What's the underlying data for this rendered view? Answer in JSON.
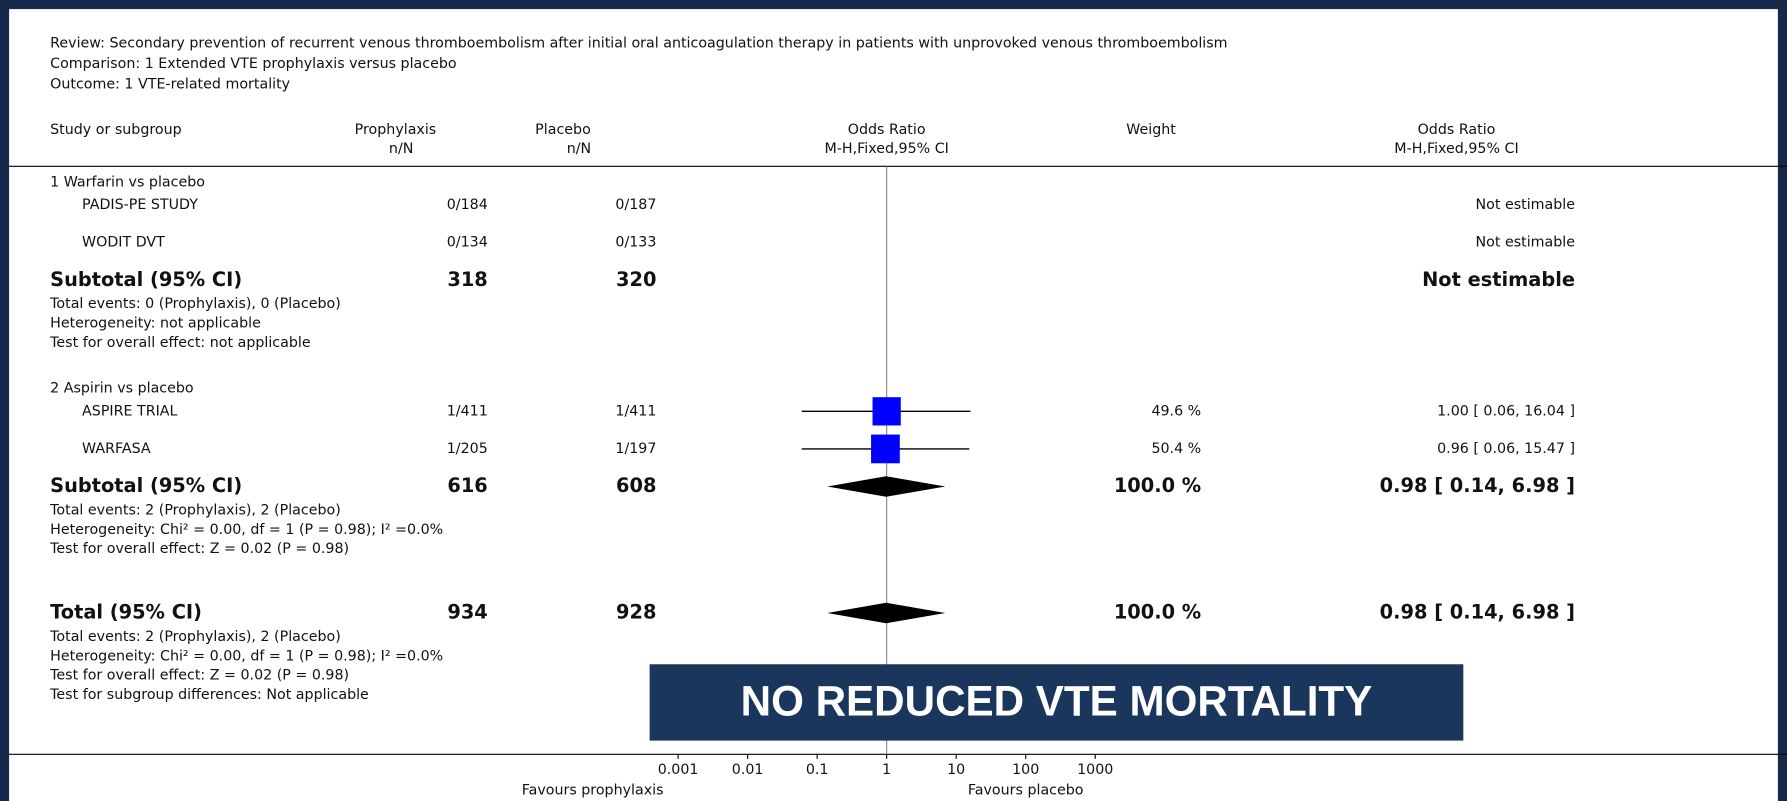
{
  "chart_data": {
    "type": "forest",
    "header": {
      "review": "Review:  Secondary prevention of recurrent venous thromboembolism after initial oral anticoagulation therapy in patients with unprovoked venous thromboembolism",
      "comparison": "Comparison:  1 Extended VTE prophylaxis versus placebo",
      "outcome": "Outcome:  1 VTE-related mortality"
    },
    "columns": {
      "study": "Study or subgroup",
      "group1": "Prophylaxis",
      "group1_sub": "n/N",
      "group2": "Placebo",
      "group2_sub": "n/N",
      "plot": "Odds Ratio",
      "plot_sub": "M-H,Fixed,95% CI",
      "weight": "Weight",
      "result": "Odds Ratio",
      "result_sub": "M-H,Fixed,95% CI"
    },
    "subgroups": [
      {
        "title": "1 Warfarin vs placebo",
        "studies": [
          {
            "name": "PADIS-PE STUDY",
            "group1": "0/184",
            "group2": "0/187",
            "result": "Not estimable"
          },
          {
            "name": "WODIT DVT",
            "group1": "0/134",
            "group2": "0/133",
            "result": "Not estimable"
          }
        ],
        "subtotal": {
          "label": "Subtotal (95% CI)",
          "group1": 318,
          "group2": 320,
          "result": "Not estimable",
          "notes": [
            "Total events: 0 (Prophylaxis), 0 (Placebo)",
            "Heterogeneity: not applicable",
            "Test for overall effect: not applicable"
          ]
        }
      },
      {
        "title": "2 Aspirin vs placebo",
        "studies": [
          {
            "name": "ASPIRE TRIAL",
            "group1": "1/411",
            "group2": "1/411",
            "or": 1.0,
            "ci": [
              0.06,
              16.04
            ],
            "weight": 49.6,
            "weight_label": "49.6 %",
            "result": "1.00 [ 0.06, 16.04 ]"
          },
          {
            "name": "WARFASA",
            "group1": "1/205",
            "group2": "1/197",
            "or": 0.96,
            "ci": [
              0.06,
              15.47
            ],
            "weight": 50.4,
            "weight_label": "50.4 %",
            "result": "0.96 [ 0.06, 15.47 ]"
          }
        ],
        "subtotal": {
          "label": "Subtotal (95% CI)",
          "group1": 616,
          "group2": 608,
          "or": 0.98,
          "ci": [
            0.14,
            6.98
          ],
          "weight": 100.0,
          "weight_label": "100.0 %",
          "result": "0.98 [ 0.14, 6.98 ]",
          "notes": [
            "Total events: 2 (Prophylaxis), 2 (Placebo)",
            "Heterogeneity: Chi² = 0.00, df = 1 (P = 0.98); I² =0.0%",
            "Test for overall effect: Z = 0.02 (P = 0.98)"
          ]
        }
      }
    ],
    "total": {
      "label": "Total (95% CI)",
      "group1": 934,
      "group2": 928,
      "or": 0.98,
      "ci": [
        0.14,
        6.98
      ],
      "weight": 100.0,
      "weight_label": "100.0 %",
      "result": "0.98 [ 0.14, 6.98 ]",
      "notes": [
        "Total events: 2 (Prophylaxis), 2 (Placebo)",
        "Heterogeneity: Chi² = 0.00, df = 1 (P = 0.98); I² =0.0%",
        "Test for overall effect: Z = 0.02 (P = 0.98)",
        "Test for subgroup differences: Not applicable"
      ]
    },
    "xlim": [
      0.001,
      1000
    ],
    "xticks": [
      0.001,
      0.01,
      0.1,
      1,
      10,
      100,
      1000
    ],
    "log_scale": true,
    "favours_left": "Favours prophylaxis",
    "favours_right": "Favours placebo",
    "square_color": "#0000ff",
    "diamond_color": "#000000"
  },
  "annotation": "NO  REDUCED VTE MORTALITY"
}
